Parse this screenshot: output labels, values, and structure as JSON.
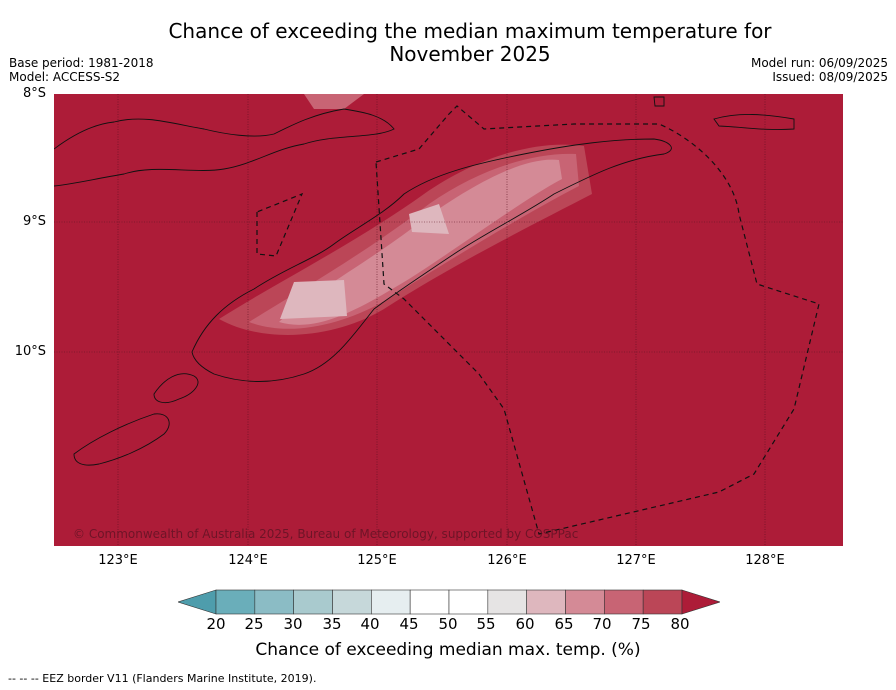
{
  "header": {
    "title_line1": "Chance of exceeding the median maximum temperature for",
    "title_line2": "November 2025",
    "base_period": "Base period: 1981-2018",
    "model": "Model: ACCESS-S2",
    "model_run": "Model run: 06/09/2025",
    "issued": "Issued: 08/09/2025"
  },
  "map": {
    "lat_labels": [
      "8°S",
      "9°S",
      "10°S"
    ],
    "lon_labels": [
      "123°E",
      "124°E",
      "125°E",
      "126°E",
      "127°E",
      "128°E"
    ],
    "extent": {
      "lon_min": 122.5,
      "lon_max": 128.6,
      "lat_min": -11.5,
      "lat_max": -8.0
    },
    "background_category": "80+",
    "copyright": "© Commonwealth of Australia 2025, Bureau of Meteorology, supported by COSPPac"
  },
  "colorbar": {
    "ticks": [
      "20",
      "25",
      "30",
      "35",
      "40",
      "45",
      "50",
      "55",
      "60",
      "65",
      "70",
      "75",
      "80"
    ],
    "colors": [
      "#4e9dac",
      "#6aaeba",
      "#8bbcc5",
      "#a9cace",
      "#c6d8da",
      "#e6eef0",
      "#ffffff",
      "#ffffff",
      "#e6e4e4",
      "#deb7be",
      "#d48a96",
      "#c86474",
      "#bb4657",
      "#ad1c38"
    ],
    "label": "Chance of exceeding median max. temp. (%)"
  },
  "footnote": "--  --  -- EEZ border V11 (Flanders Marine Institute, 2019)."
}
